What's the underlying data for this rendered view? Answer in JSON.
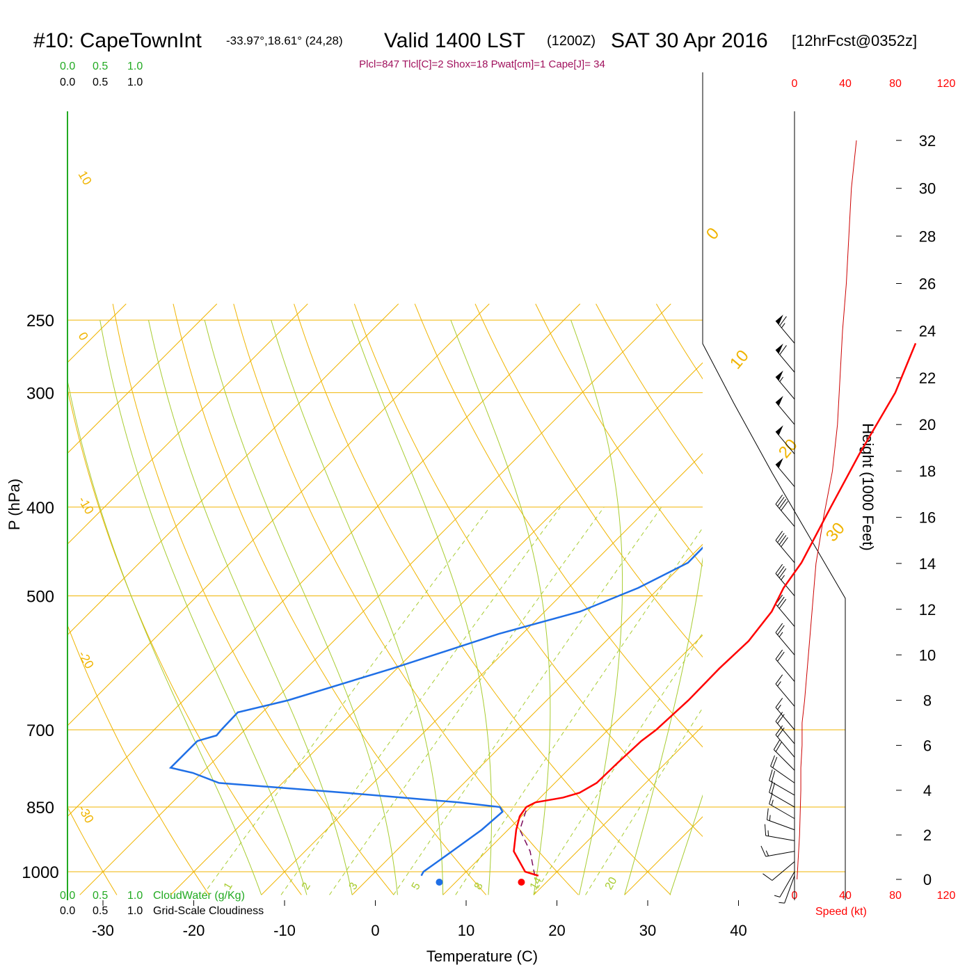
{
  "header": {
    "station": "#10: CapeTownInt",
    "coords": "-33.97°,18.61° (24,28)",
    "valid": "Valid 1400 LST",
    "zulu": "(1200Z)",
    "date": "SAT 30 Apr 2016",
    "forecast": "[12hrFcst@0352z]"
  },
  "indices": "Plcl=847 Tlcl[C]=2 Shox=18 Pwat[cm]=1 Cape[J]= 34",
  "cloud_scales": {
    "top_green": [
      "0.0",
      "0.5",
      "1.0"
    ],
    "top_black": [
      "0.0",
      "0.5",
      "1.0"
    ],
    "bottom_green": [
      "0.0",
      "0.5",
      "1.0"
    ],
    "bottom_black": [
      "0.0",
      "0.5",
      "1.0"
    ],
    "cloudwater_label": "CloudWater (g/Kg)",
    "cloudiness_label": "Grid-Scale Cloudiness"
  },
  "speed_scale": {
    "ticks": [
      "0",
      "40",
      "80",
      "120"
    ],
    "label": "Speed (kt)"
  },
  "chart_data": {
    "type": "skew-t log-p sounding",
    "x_axis": {
      "label": "Temperature (C)",
      "ticks": [
        -30,
        -20,
        -10,
        0,
        10,
        20,
        30,
        40
      ],
      "range": [
        -34,
        46
      ]
    },
    "y_axis": {
      "label": "P (hPa)",
      "ticks": [
        250,
        300,
        400,
        500,
        700,
        850,
        1000
      ],
      "range": [
        1000,
        250
      ],
      "scale": "log"
    },
    "height_axis": {
      "label": "Height (1000 Feet)",
      "ticks": [
        0,
        2,
        4,
        6,
        8,
        10,
        12,
        14,
        16,
        18,
        20,
        22,
        24,
        26,
        28,
        30,
        32
      ]
    },
    "temperature_profile": [
      {
        "p": 1010,
        "t": 18.4
      },
      {
        "p": 1000,
        "t": 16.5
      },
      {
        "p": 950,
        "t": 13.0
      },
      {
        "p": 900,
        "t": 10.9
      },
      {
        "p": 870,
        "t": 9.8
      },
      {
        "p": 850,
        "t": 9.5
      },
      {
        "p": 840,
        "t": 10.0
      },
      {
        "p": 830,
        "t": 12.5
      },
      {
        "p": 820,
        "t": 13.8
      },
      {
        "p": 800,
        "t": 14.6
      },
      {
        "p": 760,
        "t": 14.7
      },
      {
        "p": 720,
        "t": 14.9
      },
      {
        "p": 700,
        "t": 15.3
      },
      {
        "p": 650,
        "t": 15.6
      },
      {
        "p": 600,
        "t": 15.5
      },
      {
        "p": 560,
        "t": 15.7
      },
      {
        "p": 520,
        "t": 15.0
      },
      {
        "p": 490,
        "t": 13.7
      },
      {
        "p": 460,
        "t": 12.9
      },
      {
        "p": 400,
        "t": 10.0
      },
      {
        "p": 350,
        "t": 7.3
      },
      {
        "p": 300,
        "t": 4.5
      },
      {
        "p": 265,
        "t": 1.3
      }
    ],
    "dewpoint_profile": [
      {
        "p": 1010,
        "t": 5.5
      },
      {
        "p": 1000,
        "t": 5.3
      },
      {
        "p": 950,
        "t": 6.2
      },
      {
        "p": 900,
        "t": 7.1
      },
      {
        "p": 860,
        "t": 7.4
      },
      {
        "p": 850,
        "t": 6.6
      },
      {
        "p": 840,
        "t": 1.5
      },
      {
        "p": 820,
        "t": -12.0
      },
      {
        "p": 800,
        "t": -27.0
      },
      {
        "p": 780,
        "t": -31.0
      },
      {
        "p": 770,
        "t": -34.0
      },
      {
        "p": 720,
        "t": -34.0
      },
      {
        "p": 710,
        "t": -32.5
      },
      {
        "p": 700,
        "t": -32.6
      },
      {
        "p": 670,
        "t": -32.7
      },
      {
        "p": 650,
        "t": -28.5
      },
      {
        "p": 600,
        "t": -20.5
      },
      {
        "p": 550,
        "t": -12.6
      },
      {
        "p": 520,
        "t": -6.1
      },
      {
        "p": 490,
        "t": -2.3
      },
      {
        "p": 460,
        "t": 0.4
      },
      {
        "p": 410,
        "t": 0.3
      },
      {
        "p": 380,
        "t": -2.8
      },
      {
        "p": 350,
        "t": -4.0
      },
      {
        "p": 325,
        "t": -4.1
      },
      {
        "p": 300,
        "t": -3.6
      },
      {
        "p": 280,
        "t": -3.2
      },
      {
        "p": 265,
        "t": -3.5
      }
    ],
    "parcel_path": [
      {
        "p": 1010,
        "t": 18.0
      },
      {
        "p": 950,
        "t": 14.8
      },
      {
        "p": 900,
        "t": 11.3
      },
      {
        "p": 847,
        "t": 9.5
      }
    ],
    "surface_temperature": 19.0,
    "surface_dewpoint": 7.2,
    "isotherm_labels": [
      -30,
      -20,
      -10,
      0,
      10,
      20,
      30
    ],
    "mixing_ratio_labels": [
      "1",
      "2",
      "3",
      "5",
      "8",
      "14",
      "20"
    ],
    "wind_speed_profile_kt": [
      {
        "h": 0,
        "s": 2
      },
      {
        "h": 2,
        "s": 4
      },
      {
        "h": 4,
        "s": 5
      },
      {
        "h": 5,
        "s": 5
      },
      {
        "h": 6,
        "s": 6
      },
      {
        "h": 7,
        "s": 6
      },
      {
        "h": 8,
        "s": 8
      },
      {
        "h": 10,
        "s": 11
      },
      {
        "h": 12,
        "s": 14
      },
      {
        "h": 14,
        "s": 17
      },
      {
        "h": 16,
        "s": 23
      },
      {
        "h": 18,
        "s": 30
      },
      {
        "h": 20,
        "s": 34
      },
      {
        "h": 22,
        "s": 36
      },
      {
        "h": 24,
        "s": 38
      },
      {
        "h": 26,
        "s": 41
      },
      {
        "h": 28,
        "s": 43
      },
      {
        "h": 30,
        "s": 45
      },
      {
        "h": 32,
        "s": 49
      }
    ],
    "wind_barbs": [
      {
        "p": 1010,
        "spd": 3,
        "dir": 200
      },
      {
        "p": 1000,
        "spd": 5,
        "dir": 210
      },
      {
        "p": 975,
        "spd": 10,
        "dir": 230
      },
      {
        "p": 950,
        "spd": 15,
        "dir": 260
      },
      {
        "p": 925,
        "spd": 15,
        "dir": 280
      },
      {
        "p": 900,
        "spd": 15,
        "dir": 290
      },
      {
        "p": 875,
        "spd": 15,
        "dir": 300
      },
      {
        "p": 850,
        "spd": 20,
        "dir": 300
      },
      {
        "p": 825,
        "spd": 20,
        "dir": 300
      },
      {
        "p": 800,
        "spd": 20,
        "dir": 305
      },
      {
        "p": 775,
        "spd": 20,
        "dir": 315
      },
      {
        "p": 750,
        "spd": 20,
        "dir": 320
      },
      {
        "p": 725,
        "spd": 20,
        "dir": 320
      },
      {
        "p": 700,
        "spd": 15,
        "dir": 320
      },
      {
        "p": 660,
        "spd": 15,
        "dir": 320
      },
      {
        "p": 620,
        "spd": 20,
        "dir": 320
      },
      {
        "p": 580,
        "spd": 25,
        "dir": 320
      },
      {
        "p": 540,
        "spd": 30,
        "dir": 320
      },
      {
        "p": 500,
        "spd": 35,
        "dir": 320
      },
      {
        "p": 460,
        "spd": 40,
        "dir": 320
      },
      {
        "p": 420,
        "spd": 40,
        "dir": 320
      },
      {
        "p": 380,
        "spd": 50,
        "dir": 320
      },
      {
        "p": 350,
        "spd": 50,
        "dir": 320
      },
      {
        "p": 325,
        "spd": 50,
        "dir": 320
      },
      {
        "p": 305,
        "spd": 55,
        "dir": 320
      },
      {
        "p": 285,
        "spd": 60,
        "dir": 320
      },
      {
        "p": 265,
        "spd": 65,
        "dir": 320
      }
    ],
    "colors": {
      "temperature": "#ff0000",
      "dewpoint": "#1f6fe6",
      "parcel": "#7a0c5c",
      "isotherm": "#f0b400",
      "dry_adiabat": "#f0b400",
      "moist_adiabat": "#a8cc30",
      "mixing_ratio": "#a8cc30",
      "cloudwater": "#22aa22",
      "speed": "#cc0000"
    }
  }
}
